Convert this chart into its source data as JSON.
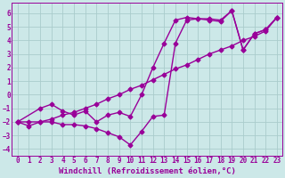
{
  "bg_color": "#cce8e8",
  "grid_color": "#aacccc",
  "line_color": "#990099",
  "marker": "D",
  "markersize": 2.5,
  "linewidth": 1.0,
  "xlabel": "Windchill (Refroidissement éolien,°C)",
  "xlabel_fontsize": 6.5,
  "tick_fontsize": 5.5,
  "xlim": [
    -0.5,
    23.5
  ],
  "ylim": [
    -4.5,
    6.8
  ],
  "xticks": [
    0,
    1,
    2,
    3,
    4,
    5,
    6,
    7,
    8,
    9,
    10,
    11,
    12,
    13,
    14,
    15,
    16,
    17,
    18,
    19,
    20,
    21,
    22,
    23
  ],
  "yticks": [
    -4,
    -3,
    -2,
    -1,
    0,
    1,
    2,
    3,
    4,
    5,
    6
  ],
  "series": [
    {
      "x": [
        0,
        1,
        2,
        3,
        4,
        5,
        6,
        7,
        8,
        9,
        10,
        11,
        12,
        13,
        14,
        15,
        16,
        17,
        18,
        19,
        20,
        21,
        22,
        23
      ],
      "y": [
        -2.0,
        -2.3,
        -2.0,
        -2.0,
        -2.2,
        -2.2,
        -2.3,
        -2.5,
        -2.8,
        -3.1,
        -3.7,
        -2.7,
        -1.6,
        -1.5,
        3.8,
        5.5,
        5.6,
        5.6,
        5.5,
        6.2,
        3.3,
        4.5,
        4.8,
        5.7
      ]
    },
    {
      "x": [
        0,
        1,
        2,
        3,
        4,
        5,
        6,
        7,
        8,
        9,
        10,
        11,
        12,
        13,
        14,
        15,
        16,
        17,
        18,
        19,
        20,
        21,
        22,
        23
      ],
      "y": [
        -2.0,
        -2.0,
        -2.0,
        -1.8,
        -1.5,
        -1.3,
        -1.0,
        -0.7,
        -0.3,
        0.0,
        0.4,
        0.7,
        1.1,
        1.5,
        1.9,
        2.2,
        2.6,
        3.0,
        3.3,
        3.6,
        4.0,
        4.3,
        4.7,
        5.7
      ]
    },
    {
      "x": [
        0,
        2,
        3,
        4,
        5,
        6,
        7,
        8,
        9,
        10,
        11,
        12,
        13,
        14,
        15,
        16,
        17,
        18,
        19,
        20,
        21,
        22,
        23
      ],
      "y": [
        -2.0,
        -1.0,
        -0.7,
        -1.2,
        -1.5,
        -1.2,
        -2.0,
        -1.5,
        -1.3,
        -1.6,
        0.0,
        2.0,
        3.8,
        5.5,
        5.7,
        5.6,
        5.5,
        5.4,
        6.2,
        3.3,
        4.5,
        4.8,
        5.7
      ]
    }
  ]
}
